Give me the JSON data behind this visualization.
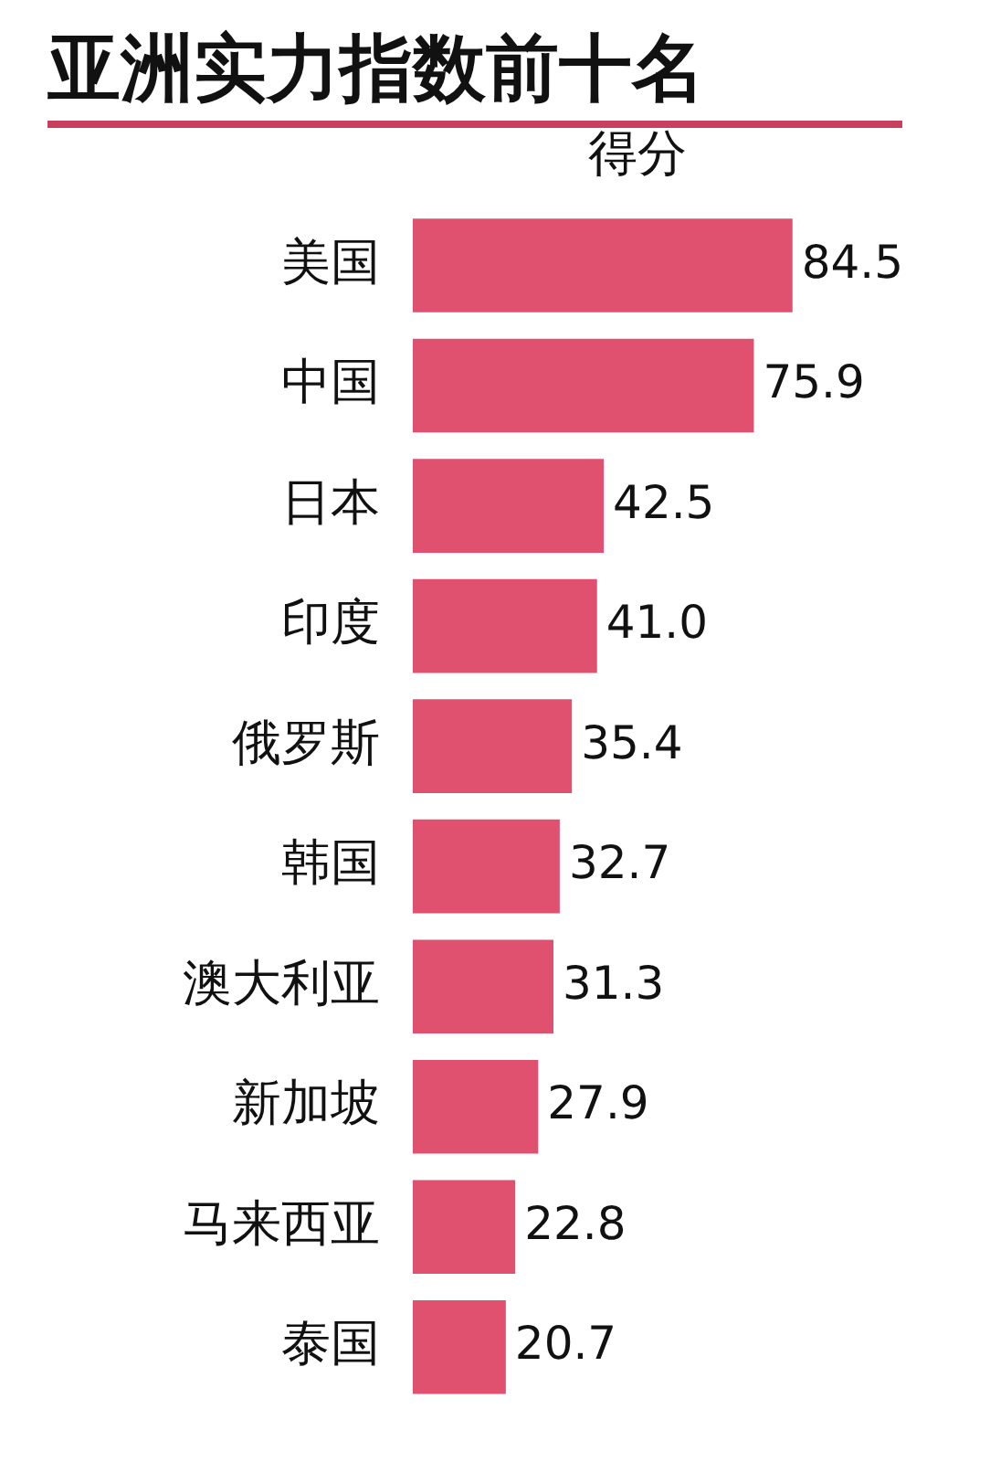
{
  "chart_data": {
    "type": "bar",
    "orientation": "horizontal",
    "title": "亚洲实力指数前十名",
    "xlabel": "得分",
    "categories": [
      "美国",
      "中国",
      "日本",
      "印度",
      "俄罗斯",
      "韩国",
      "澳大利亚",
      "新加坡",
      "马来西亚",
      "泰国"
    ],
    "values": [
      84.5,
      75.9,
      42.5,
      41.0,
      35.4,
      32.7,
      31.3,
      27.9,
      22.8,
      20.7
    ],
    "value_labels": [
      "84.5",
      "75.9",
      "42.5",
      "41.0",
      "35.4",
      "32.7",
      "31.3",
      "27.9",
      "22.8",
      "20.7"
    ],
    "color": "#e0506f",
    "grid": false,
    "legend": false
  }
}
